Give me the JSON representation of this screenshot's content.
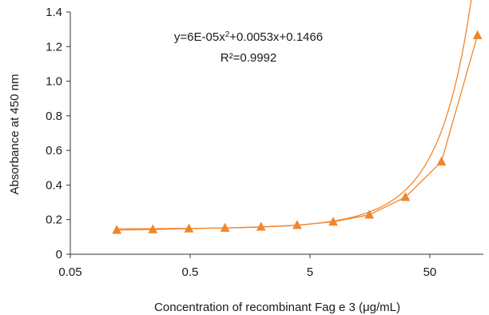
{
  "chart_data": {
    "type": "scatter",
    "title": "",
    "xlabel": "Concentration of recombinant Fag e 3 (μg/mL)",
    "ylabel": "Absorbance at 450 nm",
    "x_scale": "log",
    "x_ticks": [
      0.05,
      0.5,
      5,
      50
    ],
    "x_tick_labels": [
      "0.05",
      "0.5",
      "5",
      "50"
    ],
    "xlim": [
      0.05,
      140
    ],
    "y_ticks": [
      0,
      0.2,
      0.4,
      0.6,
      0.8,
      1.0,
      1.2,
      1.4
    ],
    "y_tick_labels": [
      "0",
      "0.2",
      "0.4",
      "0.6",
      "0.8",
      "1.0",
      "1.2",
      "1.4"
    ],
    "ylim": [
      0,
      1.4
    ],
    "grid": false,
    "legend": "none",
    "marker": "triangle",
    "color": "#F0862B",
    "series": [
      {
        "x": [
          0.1221,
          0.2441,
          0.4883,
          0.9766,
          1.9531,
          3.9063,
          7.8125,
          15.625,
          31.25,
          62.5,
          125
        ],
        "y": [
          0.14,
          0.143,
          0.148,
          0.152,
          0.158,
          0.168,
          0.187,
          0.228,
          0.33,
          0.535,
          1.265
        ]
      }
    ],
    "trendline": {
      "type": "polynomial",
      "coefficients": [
        6e-05,
        0.0053,
        0.1466
      ]
    },
    "annotations": {
      "equation_prefix": "y=6E-05x",
      "equation_sup": "2",
      "equation_suffix": "+0.0053x+0.1466",
      "r2_label": "R²=0.9992"
    }
  }
}
